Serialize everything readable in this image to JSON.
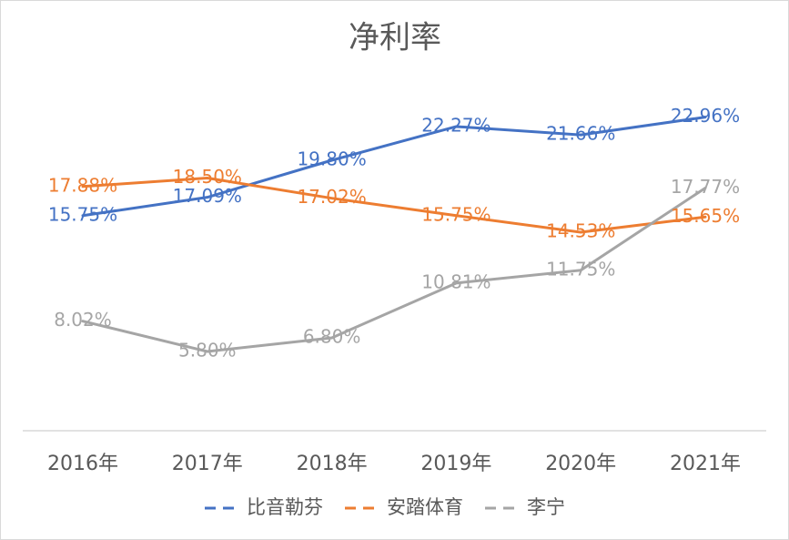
{
  "chart_data": {
    "type": "line",
    "title": "净利率",
    "categories": [
      "2016年",
      "2017年",
      "2018年",
      "2019年",
      "2020年",
      "2021年"
    ],
    "series": [
      {
        "name": "比音勒芬",
        "color": "#4472c4",
        "values": [
          15.75,
          17.09,
          19.8,
          22.27,
          21.66,
          22.96
        ],
        "value_labels": [
          "15.75%",
          "17.09%",
          "19.80%",
          "22.27%",
          "21.66%",
          "22.96%"
        ]
      },
      {
        "name": "安踏体育",
        "color": "#ed7d31",
        "values": [
          17.88,
          18.5,
          17.02,
          15.75,
          14.53,
          15.65
        ],
        "value_labels": [
          "17.88%",
          "18.50%",
          "17.02%",
          "15.75%",
          "14.53%",
          "15.65%"
        ]
      },
      {
        "name": "李宁",
        "color": "#a5a5a5",
        "values": [
          8.02,
          5.8,
          6.8,
          10.81,
          11.75,
          17.77
        ],
        "value_labels": [
          "8.02%",
          "5.80%",
          "6.80%",
          "10.81%",
          "11.75%",
          "17.77%"
        ]
      }
    ]
  }
}
